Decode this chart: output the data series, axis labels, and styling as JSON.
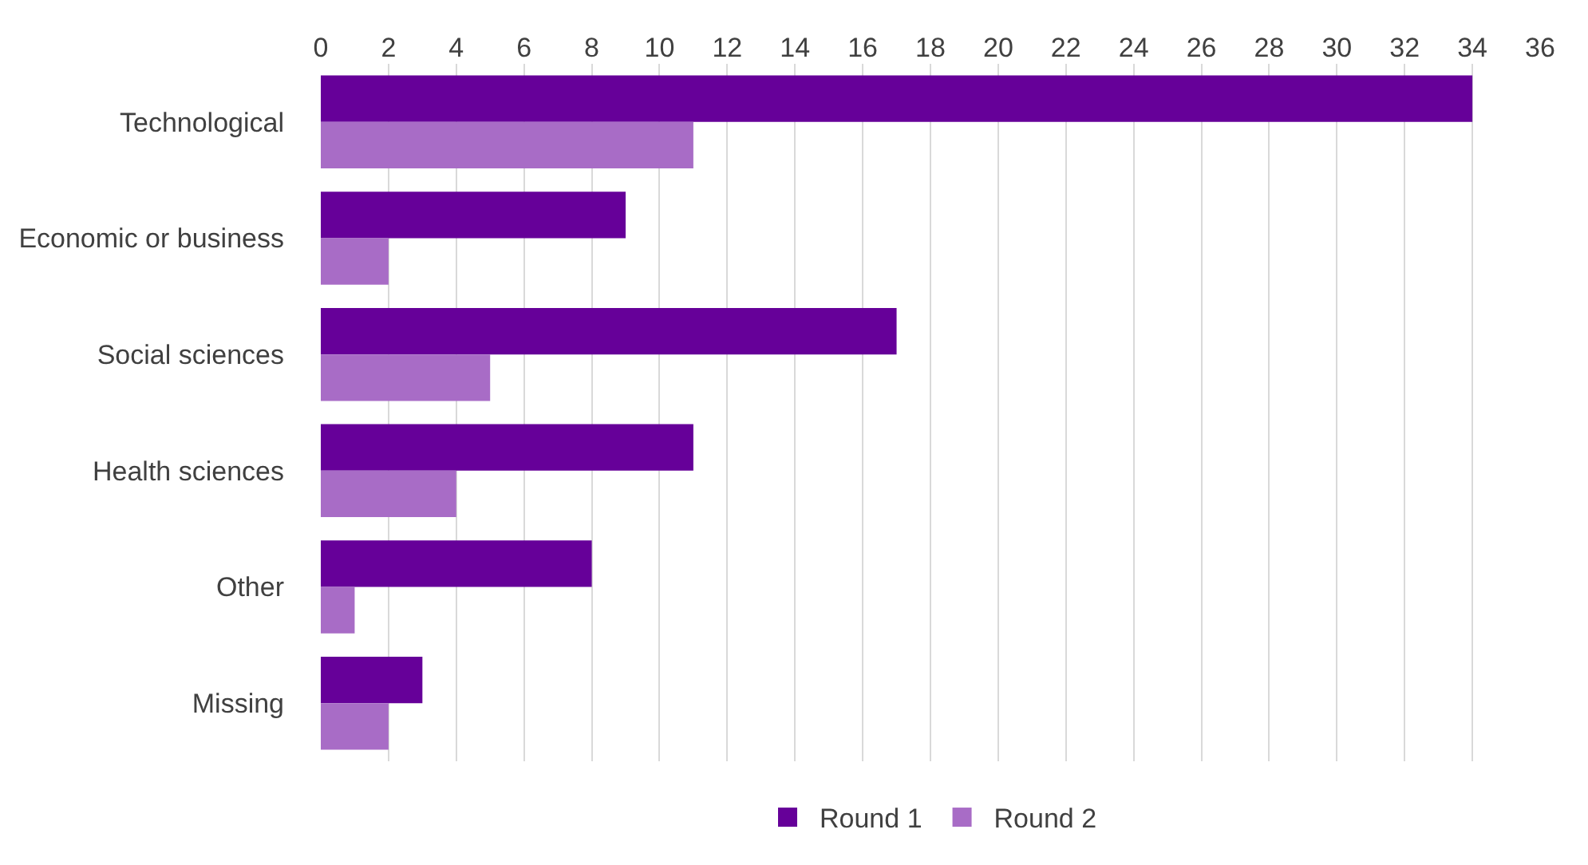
{
  "chart_data": {
    "type": "bar",
    "orientation": "horizontal",
    "categories": [
      "Technological",
      "Economic or business",
      "Social sciences",
      "Health sciences",
      "Other",
      "Missing"
    ],
    "series": [
      {
        "name": "Round 1",
        "color": "#660099",
        "values": [
          34,
          9,
          17,
          11,
          8,
          3
        ]
      },
      {
        "name": "Round 2",
        "color": "#a86cc6",
        "values": [
          11,
          2,
          5,
          4,
          1,
          2
        ]
      }
    ],
    "xlim": [
      0,
      36
    ],
    "xticks": [
      0,
      2,
      4,
      6,
      8,
      10,
      12,
      14,
      16,
      18,
      20,
      22,
      24,
      26,
      28,
      30,
      32,
      34,
      36
    ],
    "grid": "x",
    "legend": "bottom"
  }
}
